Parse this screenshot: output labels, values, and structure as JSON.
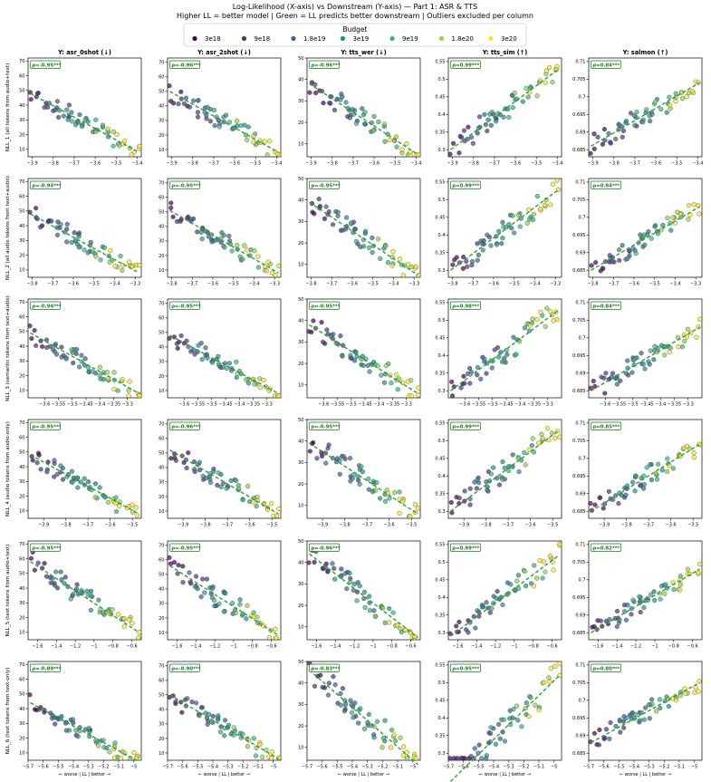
{
  "title": {
    "line1": "Log-Likelihood (X-axis) vs Downstream (Y-axis) — Part 1: ASR & TTS",
    "line2": "Higher LL = better model | Green = LL predicts better downstream | Outliers excluded per column"
  },
  "legend": {
    "title": "Budget",
    "items": [
      {
        "label": "3e18",
        "color": "#440154"
      },
      {
        "label": "9e18",
        "color": "#443983"
      },
      {
        "label": "1.8e19",
        "color": "#31688e"
      },
      {
        "label": "3e19",
        "color": "#21918c"
      },
      {
        "label": "9e19",
        "color": "#35b779"
      },
      {
        "label": "1.8e20",
        "color": "#90d743"
      },
      {
        "label": "3e20",
        "color": "#fde725"
      }
    ]
  },
  "x_axis_label": "← worse | LL | better →",
  "chart_data": {
    "type": "scatter",
    "columns": [
      {
        "title": "Y: asr_0shot (↓)",
        "ylim": [
          5,
          72
        ],
        "yticks": [
          10,
          20,
          30,
          40,
          50,
          60,
          70
        ]
      },
      {
        "title": "Y: asr_2shot (↓)",
        "ylim": [
          5,
          73
        ],
        "yticks": [
          10,
          20,
          30,
          40,
          50,
          60,
          70
        ]
      },
      {
        "title": "Y: tts_wer (↓)",
        "ylim": [
          4,
          50
        ],
        "yticks": [
          10,
          20,
          30,
          40,
          50
        ]
      },
      {
        "title": "Y: tts_sim (↑)",
        "ylim": [
          0.28,
          0.56
        ],
        "yticks": [
          0.3,
          0.35,
          0.4,
          0.45,
          0.5,
          0.55
        ]
      },
      {
        "title": "Y: salmon (↑)",
        "ylim": [
          0.683,
          0.711
        ],
        "yticks": [
          0.685,
          0.69,
          0.695,
          0.7,
          0.705,
          0.71
        ]
      }
    ],
    "rows": [
      {
        "label": "NLL_1 (all tokens from audio+text)",
        "xlim": [
          -3.92,
          -3.38
        ],
        "xticks": [
          -3.9,
          -3.8,
          -3.7,
          -3.6,
          -3.5,
          -3.4
        ]
      },
      {
        "label": "NLL_2 (all audio tokens from text+audio)",
        "xlim": [
          -3.82,
          -3.27
        ],
        "xticks": [
          -3.8,
          -3.7,
          -3.6,
          -3.5,
          -3.4,
          -3.3
        ]
      },
      {
        "label": "NLL_3 (semantic tokens from text+audio)",
        "xlim": [
          -3.66,
          -3.25
        ],
        "xticks": [
          -3.6,
          -3.55,
          -3.5,
          -3.45,
          -3.4,
          -3.35,
          -3.3
        ]
      },
      {
        "label": "NLL_4 (audio tokens from audio-only)",
        "xlim": [
          -3.97,
          -3.46
        ],
        "xticks": [
          -3.9,
          -3.8,
          -3.7,
          -3.6,
          -3.5
        ]
      },
      {
        "label": "NLL_5 (text tokens from audio+text)",
        "xlim": [
          -1.7,
          -0.5
        ],
        "xticks": [
          -1.6,
          -1.4,
          -1.2,
          -1.0,
          -0.8,
          -0.6
        ]
      },
      {
        "label": "NLL_6 (text tokens from text-only)",
        "xlim": [
          -5.7,
          -4.95
        ],
        "xticks": [
          -5.7,
          -5.6,
          -5.5,
          -5.4,
          -5.3,
          -5.2,
          -5.1,
          -5.0
        ]
      }
    ],
    "fit_lines": [
      [
        {
          "rho": "ρ=-0.95***",
          "fit": [
            48,
            8
          ]
        },
        {
          "rho": "ρ=-0.96***",
          "fit": [
            50,
            8
          ]
        },
        {
          "rho": "ρ=-0.96***",
          "fit": [
            38,
            5
          ]
        },
        {
          "rho": "ρ=0.99***",
          "fit": [
            0.3,
            0.53
          ]
        },
        {
          "rho": "ρ=0.84***",
          "fit": [
            0.686,
            0.704
          ]
        }
      ],
      [
        {
          "rho": "ρ=-0.94***",
          "fit": [
            48,
            8
          ]
        },
        {
          "rho": "ρ=-0.95***",
          "fit": [
            51,
            8
          ]
        },
        {
          "rho": "ρ=-0.95***",
          "fit": [
            39,
            5
          ]
        },
        {
          "rho": "ρ=0.99***",
          "fit": [
            0.3,
            0.53
          ]
        },
        {
          "rho": "ρ=0.84***",
          "fit": [
            0.685,
            0.703
          ]
        }
      ],
      [
        {
          "rho": "ρ=-0.94***",
          "fit": [
            49,
            8
          ]
        },
        {
          "rho": "ρ=-0.95***",
          "fit": [
            48,
            8
          ]
        },
        {
          "rho": "ρ=-0.95***",
          "fit": [
            38,
            6
          ]
        },
        {
          "rho": "ρ=0.98***",
          "fit": [
            0.3,
            0.53
          ]
        },
        {
          "rho": "ρ=0.84***",
          "fit": [
            0.685,
            0.703
          ]
        }
      ],
      [
        {
          "rho": "ρ=-0.95***",
          "fit": [
            48,
            8
          ]
        },
        {
          "rho": "ρ=-0.96***",
          "fit": [
            52,
            8
          ]
        },
        {
          "rho": "ρ=-0.95***",
          "fit": [
            39,
            6
          ]
        },
        {
          "rho": "ρ=0.99***",
          "fit": [
            0.3,
            0.53
          ]
        },
        {
          "rho": "ρ=0.85***",
          "fit": [
            0.685,
            0.704
          ]
        }
      ],
      [
        {
          "rho": "ρ=-0.95***",
          "fit": [
            58,
            10
          ]
        },
        {
          "rho": "ρ=-0.95***",
          "fit": [
            56,
            8
          ]
        },
        {
          "rho": "ρ=-0.96***",
          "fit": [
            44,
            5
          ]
        },
        {
          "rho": "ρ=0.99***",
          "fit": [
            0.29,
            0.52
          ]
        },
        {
          "rho": "ρ=0.82***",
          "fit": [
            0.685,
            0.703
          ]
        }
      ],
      [
        {
          "rho": "ρ=-0.89***",
          "fit": [
            44,
            4
          ]
        },
        {
          "rho": "ρ=-0.90***",
          "fit": [
            50,
            6
          ]
        },
        {
          "rho": "ρ=-0.83***",
          "fit": [
            46,
            2
          ]
        },
        {
          "rho": "ρ=0.95***",
          "fit": [
            0.22,
            0.52
          ]
        },
        {
          "rho": "ρ=0.80***",
          "fit": [
            0.688,
            0.705
          ]
        }
      ]
    ],
    "points": [
      {
        "t": 0.0,
        "b": 0
      },
      {
        "t": 0.03,
        "b": 0
      },
      {
        "t": 0.06,
        "b": 0
      },
      {
        "t": 0.1,
        "b": 0
      },
      {
        "t": 0.14,
        "b": 0
      },
      {
        "t": 0.08,
        "b": 1
      },
      {
        "t": 0.12,
        "b": 1
      },
      {
        "t": 0.16,
        "b": 1
      },
      {
        "t": 0.2,
        "b": 1
      },
      {
        "t": 0.24,
        "b": 1
      },
      {
        "t": 0.28,
        "b": 1
      },
      {
        "t": 0.33,
        "b": 1
      },
      {
        "t": 0.38,
        "b": 1
      },
      {
        "t": 0.45,
        "b": 1
      },
      {
        "t": 0.18,
        "b": 2
      },
      {
        "t": 0.22,
        "b": 2
      },
      {
        "t": 0.27,
        "b": 2
      },
      {
        "t": 0.31,
        "b": 2
      },
      {
        "t": 0.35,
        "b": 2
      },
      {
        "t": 0.4,
        "b": 2
      },
      {
        "t": 0.44,
        "b": 2
      },
      {
        "t": 0.48,
        "b": 2
      },
      {
        "t": 0.53,
        "b": 2
      },
      {
        "t": 0.58,
        "b": 2
      },
      {
        "t": 0.26,
        "b": 3
      },
      {
        "t": 0.32,
        "b": 3
      },
      {
        "t": 0.37,
        "b": 3
      },
      {
        "t": 0.42,
        "b": 3
      },
      {
        "t": 0.47,
        "b": 3
      },
      {
        "t": 0.52,
        "b": 3
      },
      {
        "t": 0.57,
        "b": 3
      },
      {
        "t": 0.62,
        "b": 3
      },
      {
        "t": 0.67,
        "b": 3
      },
      {
        "t": 0.72,
        "b": 3
      },
      {
        "t": 0.4,
        "b": 4
      },
      {
        "t": 0.46,
        "b": 4
      },
      {
        "t": 0.52,
        "b": 4
      },
      {
        "t": 0.58,
        "b": 4
      },
      {
        "t": 0.64,
        "b": 4
      },
      {
        "t": 0.7,
        "b": 4
      },
      {
        "t": 0.76,
        "b": 4
      },
      {
        "t": 0.82,
        "b": 4
      },
      {
        "t": 0.62,
        "b": 5
      },
      {
        "t": 0.7,
        "b": 5
      },
      {
        "t": 0.78,
        "b": 5
      },
      {
        "t": 0.85,
        "b": 5
      },
      {
        "t": 0.91,
        "b": 5
      },
      {
        "t": 0.74,
        "b": 6
      },
      {
        "t": 0.8,
        "b": 6
      },
      {
        "t": 0.85,
        "b": 6
      },
      {
        "t": 0.89,
        "b": 6
      },
      {
        "t": 0.93,
        "b": 6
      },
      {
        "t": 0.96,
        "b": 6
      },
      {
        "t": 0.99,
        "b": 6
      },
      {
        "t": 1.0,
        "b": 6
      }
    ]
  }
}
